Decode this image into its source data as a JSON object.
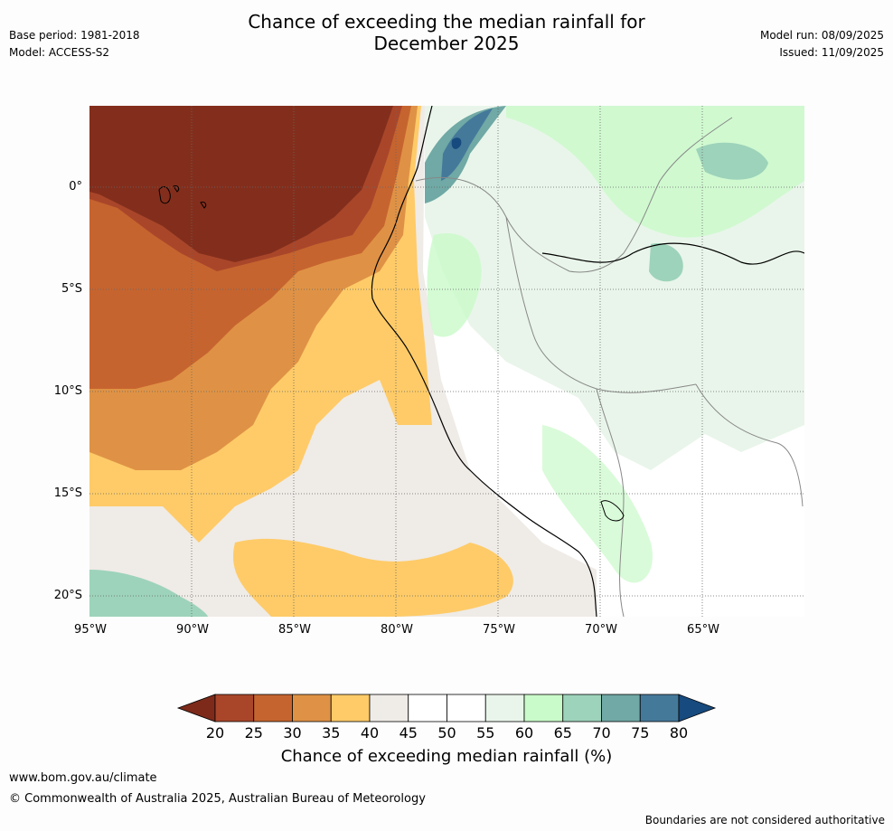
{
  "header": {
    "title_line1": "Chance of exceeding the median rainfall for",
    "title_line2": "December 2025",
    "base_period": "Base period: 1981-2018",
    "model": "Model: ACCESS-S2",
    "model_run": "Model run: 08/09/2025",
    "issued": "Issued: 11/09/2025"
  },
  "map": {
    "lat_labels": [
      "0°",
      "5°S",
      "10°S",
      "15°S",
      "20°S"
    ],
    "lon_labels": [
      "95°W",
      "90°W",
      "85°W",
      "80°W",
      "75°W",
      "70°W",
      "65°W"
    ]
  },
  "colorbar": {
    "title": "Chance of exceeding median rainfall (%)",
    "ticks": [
      "20",
      "25",
      "30",
      "35",
      "40",
      "45",
      "50",
      "55",
      "60",
      "65",
      "70",
      "75",
      "80"
    ],
    "colors": [
      "#7d2a1a",
      "#a9462a",
      "#c6642f",
      "#df9245",
      "#fecb68",
      "#efebe7",
      "#ffffff",
      "#ffffff",
      "#e9f5ea",
      "#c9fac9",
      "#9dd3ba",
      "#70a9a5",
      "#45799a",
      "#174a7e"
    ]
  },
  "footer": {
    "url": "www.bom.gov.au/climate",
    "copyright": "© Commonwealth of Australia 2025, Australian Bureau of Meteorology",
    "disclaimer": "Boundaries are not considered authoritative"
  }
}
